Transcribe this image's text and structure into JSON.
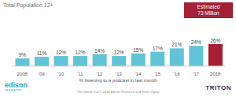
{
  "chart_data": {
    "type": "bar",
    "title": "Total Population 12+",
    "x_label": "% listening to a podcast in last month",
    "categories": [
      "2008",
      "'09",
      "'10",
      "'11",
      "'12",
      "'13",
      "'14",
      "'15",
      "'16",
      "'17",
      "2018"
    ],
    "values": [
      9,
      11,
      12,
      12,
      14,
      12,
      15,
      17,
      21,
      24,
      26
    ],
    "value_labels": [
      "9%",
      "11%",
      "12%",
      "12%",
      "14%",
      "12%",
      "15%",
      "17%",
      "21%",
      "24%",
      "26%"
    ],
    "colors": [
      "#62c3d6",
      "#62c3d6",
      "#62c3d6",
      "#62c3d6",
      "#62c3d6",
      "#62c3d6",
      "#62c3d6",
      "#62c3d6",
      "#62c3d6",
      "#62c3d6",
      "#a32035"
    ],
    "data_labels": true,
    "tick_labels": "x",
    "annotations": [
      "Estimated",
      "73 Million"
    ],
    "source": "The Infinite Dial © 2018 Edison Research and Triton Digital",
    "logos": [
      {
        "text": "edison",
        "subtext": "research"
      },
      {
        "text": "TRITON"
      }
    ]
  }
}
